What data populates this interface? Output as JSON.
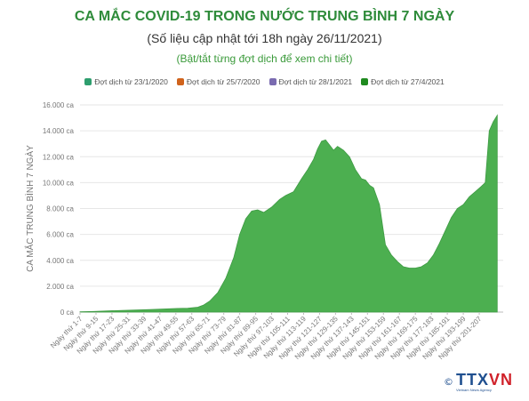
{
  "header": {
    "title": "CA MẮC COVID-19 TRONG NƯỚC TRUNG BÌNH 7 NGÀY",
    "subtitle": "(Số liệu cập nhật tới 18h ngày 26/11/2021)",
    "hint": "(Bật/tắt từng đợt dịch để xem chi tiết)"
  },
  "legend": [
    {
      "label": "Đợt dịch từ 23/1/2020",
      "color": "#2e9e6e"
    },
    {
      "label": "Đợt dịch từ 25/7/2020",
      "color": "#d0631c"
    },
    {
      "label": "Đợt dịch từ 28/1/2021",
      "color": "#7a6bb0"
    },
    {
      "label": "Đợt dịch từ 27/4/2021",
      "color": "#1f8a1f"
    }
  ],
  "logo": {
    "copyright": "©",
    "brand_a": "TTX",
    "brand_b": "VN",
    "tagline": "Vietnam News Agency"
  },
  "chart_data": {
    "type": "area",
    "ylabel": "CA MẮC TRUNG BÌNH 7 NGÀY",
    "xlabel": "",
    "ylim": [
      0,
      16000
    ],
    "yticks": [
      0,
      2000,
      4000,
      6000,
      8000,
      10000,
      12000,
      14000,
      16000
    ],
    "ytick_labels": [
      "0 ca",
      "2.000 ca",
      "4.000 ca",
      "6.000 ca",
      "8.000 ca",
      "10.000 ca",
      "12.000 ca",
      "14.000 ca",
      "16.000 ca"
    ],
    "xlim": [
      1,
      213
    ],
    "xticks": [
      1,
      9,
      17,
      25,
      33,
      41,
      49,
      57,
      65,
      73,
      81,
      89,
      97,
      105,
      113,
      121,
      129,
      137,
      145,
      153,
      161,
      169,
      177,
      185,
      193,
      201
    ],
    "xtick_labels": [
      "Ngày thứ 1-7",
      "Ngày thứ 9-15",
      "Ngày thứ 17-23",
      "Ngày thứ 25-31",
      "Ngày thứ 33-39",
      "Ngày thứ 41-47",
      "Ngày thứ 49-55",
      "Ngày thứ 57-63",
      "Ngày thứ 65-71",
      "Ngày thứ 73-79",
      "Ngày thứ 81-87",
      "Ngày thứ 89-95",
      "Ngày thứ 97-103",
      "Ngày thứ 105-111",
      "Ngày thứ 113-119",
      "Ngày thứ 121-127",
      "Ngày thứ 129-135",
      "Ngày thứ 137-143",
      "Ngày thứ 145-151",
      "Ngày thứ 153-159",
      "Ngày thứ 161-167",
      "Ngày thứ 169-175",
      "Ngày thứ 177-183",
      "Ngày thứ 185-191",
      "Ngày thứ 193-199",
      "Ngày thứ 201-207"
    ],
    "series": [
      {
        "name": "Đợt dịch từ 27/4/2021",
        "color": "#4caf50",
        "x": [
          1,
          8,
          15,
          22,
          29,
          36,
          43,
          50,
          55,
          60,
          63,
          66,
          70,
          74,
          78,
          81,
          84,
          87,
          90,
          93,
          97,
          101,
          104,
          108,
          112,
          115,
          118,
          120,
          122,
          124,
          126,
          128,
          130,
          133,
          136,
          139,
          142,
          144,
          146,
          148,
          151,
          154,
          157,
          160,
          163,
          166,
          169,
          172,
          175,
          178,
          181,
          184,
          187,
          190,
          193,
          196,
          199,
          202,
          204,
          206,
          208,
          210
        ],
        "y": [
          20,
          50,
          90,
          130,
          160,
          190,
          240,
          280,
          300,
          380,
          550,
          850,
          1500,
          2600,
          4200,
          6000,
          7200,
          7800,
          7900,
          7700,
          8100,
          8700,
          9000,
          9300,
          10300,
          11000,
          11800,
          12600,
          13200,
          13300,
          12900,
          12500,
          12800,
          12500,
          12000,
          11000,
          10300,
          10200,
          9800,
          9600,
          8300,
          5200,
          4400,
          3900,
          3500,
          3400,
          3400,
          3500,
          3800,
          4400,
          5300,
          6300,
          7300,
          8000,
          8300,
          8900,
          9300,
          9700,
          10000,
          14000,
          14700,
          15200
        ]
      }
    ]
  }
}
